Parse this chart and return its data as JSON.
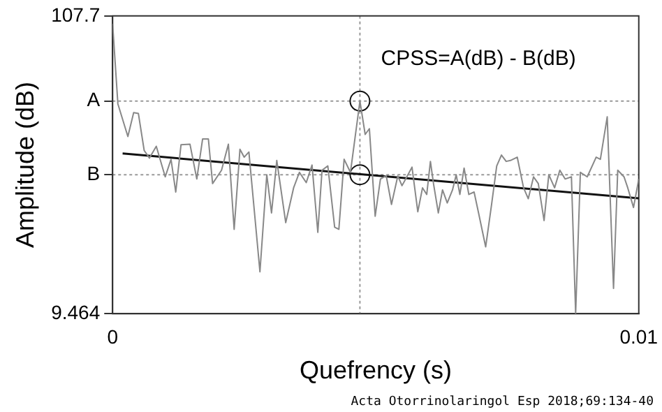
{
  "chart_data": {
    "type": "line",
    "xlabel": "Quefrency (s)",
    "ylabel": "Amplitude (dB)",
    "annotations": [
      "CPSS=A(dB) - B(dB)",
      "Acta Otorrinolaringol Esp 2018;69:134-40"
    ],
    "xlim": [
      0,
      0.01
    ],
    "xticks": [
      0,
      0.01
    ],
    "ylim": [
      9.464,
      107.7
    ],
    "yticks": [
      9.464,
      {
        "value": 55.3,
        "label": "B"
      },
      {
        "value": 79.6,
        "label": "A"
      },
      107.7
    ],
    "grid": false,
    "legend": false,
    "marker": "none",
    "line_style": "solid",
    "ref_lines": [
      {
        "axis": "y",
        "value": 79.6,
        "label": null,
        "color": "#999999",
        "line_style": "dotted"
      },
      {
        "axis": "y",
        "value": 55.3,
        "label": null,
        "color": "#999999",
        "line_style": "dotted"
      },
      {
        "axis": "x",
        "value": 0.0047,
        "label": null,
        "color": "#999999",
        "line_style": "dotted"
      }
    ],
    "series": [
      {
        "color": "#888888",
        "x": [
          0,
          0.0001,
          0.00029,
          0.0004,
          0.00049,
          0.0006,
          0.0007,
          0.00083,
          0.001,
          0.00111,
          0.0012,
          0.0013,
          0.00147,
          0.0016,
          0.00171,
          0.00182,
          0.0019,
          0.00207,
          0.0022,
          0.00231,
          0.00242,
          0.0025,
          0.00259,
          0.0028,
          0.00293,
          0.00302,
          0.00312,
          0.00329,
          0.00344,
          0.00355,
          0.00368,
          0.00379,
          0.0039,
          0.00398,
          0.00409,
          0.00422,
          0.0043,
          0.0044,
          0.00452,
          0.0047,
          0.0048,
          0.00488,
          0.00499,
          0.00509,
          0.0052,
          0.0053,
          0.00542,
          0.0055,
          0.00557,
          0.00569,
          0.0058,
          0.00589,
          0.00597,
          0.00604,
          0.0061,
          0.00619,
          0.00627,
          0.00636,
          0.00646,
          0.00653,
          0.0066,
          0.00668,
          0.00677,
          0.00687,
          0.00696,
          0.00709,
          0.0072,
          0.0073,
          0.00739,
          0.00748,
          0.00756,
          0.00769,
          0.00781,
          0.0079,
          0.008,
          0.00809,
          0.0082,
          0.00829,
          0.0084,
          0.0085,
          0.0086,
          0.00872,
          0.0088,
          0.00889,
          0.00902,
          0.00919,
          0.00927,
          0.0094,
          0.00952,
          0.0096,
          0.00972,
          0.00979,
          0.0099,
          0.01
        ],
        "values": [
          105.1,
          78.7,
          67.9,
          75.8,
          75.5,
          63.3,
          60.8,
          64.7,
          54.6,
          60.4,
          49.6,
          65.2,
          65.4,
          53.9,
          67.1,
          67.1,
          52.4,
          56.8,
          65.4,
          37.3,
          63.7,
          61.1,
          62.8,
          23.3,
          55.3,
          42.7,
          60.0,
          39.5,
          51.0,
          56.1,
          52.7,
          58.5,
          36.3,
          56.8,
          58.2,
          38.0,
          37.3,
          60.4,
          56.1,
          79.6,
          68.6,
          70.5,
          41.6,
          53.9,
          55.0,
          45.5,
          54.9,
          51.7,
          53.9,
          57.8,
          43.1,
          51.0,
          48.8,
          59.7,
          52.2,
          42.7,
          50.3,
          46.0,
          50.3,
          55.3,
          48.8,
          57.5,
          48.8,
          49.6,
          42.3,
          31.5,
          45.2,
          58.2,
          61.8,
          59.7,
          60.0,
          61.1,
          51.0,
          47.4,
          54.6,
          52.4,
          40.2,
          55.3,
          51.0,
          56.8,
          53.9,
          54.6,
          9.5,
          56.1,
          54.6,
          61.1,
          60.4,
          74.4,
          17.8,
          56.8,
          54.6,
          51.0,
          44.5,
          53.9
        ]
      },
      {
        "color": "#111111",
        "x": [
          0.00019,
          0.01
        ],
        "values": [
          62.3,
          47.5
        ]
      },
      {
        "type": "scatter",
        "color": "#111111",
        "marker": "circle",
        "x": [
          0.0047,
          0.0047
        ],
        "values": [
          79.6,
          55.3
        ]
      }
    ]
  }
}
